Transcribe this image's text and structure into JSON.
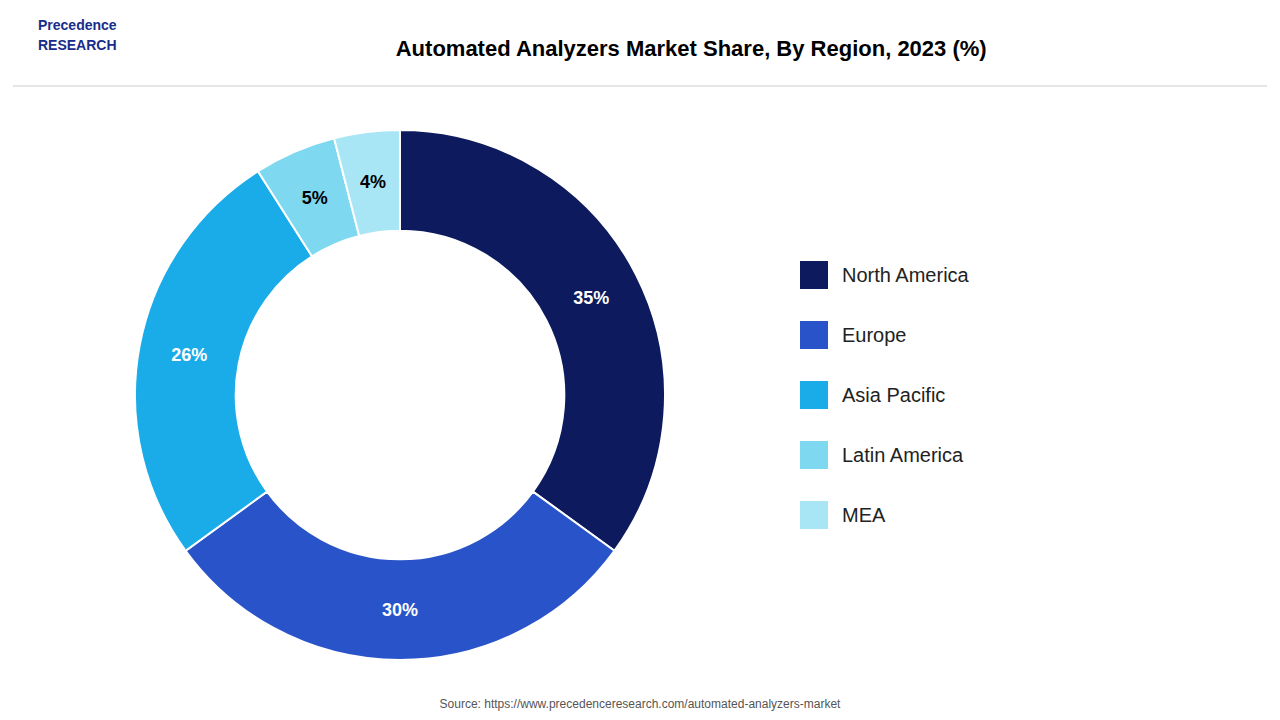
{
  "chart_data": {
    "type": "pie",
    "title": "Automated Analyzers Market Share, By Region, 2023 (%)",
    "categories": [
      "North America",
      "Europe",
      "Asia Pacific",
      "Latin America",
      "MEA"
    ],
    "values": [
      35,
      30,
      26,
      5,
      4
    ],
    "value_labels": [
      "35%",
      "30%",
      "26%",
      "5%",
      "4%"
    ],
    "colors": [
      "#0d1b5e",
      "#2953c8",
      "#1aace8",
      "#7dd8f0",
      "#a8e6f5"
    ],
    "data_labels": true,
    "legend": "right",
    "annotations": [
      "Source: https://www.precedenceresearch.com/automated-analyzers-market",
      "Precedence",
      "RESEARCH"
    ]
  }
}
